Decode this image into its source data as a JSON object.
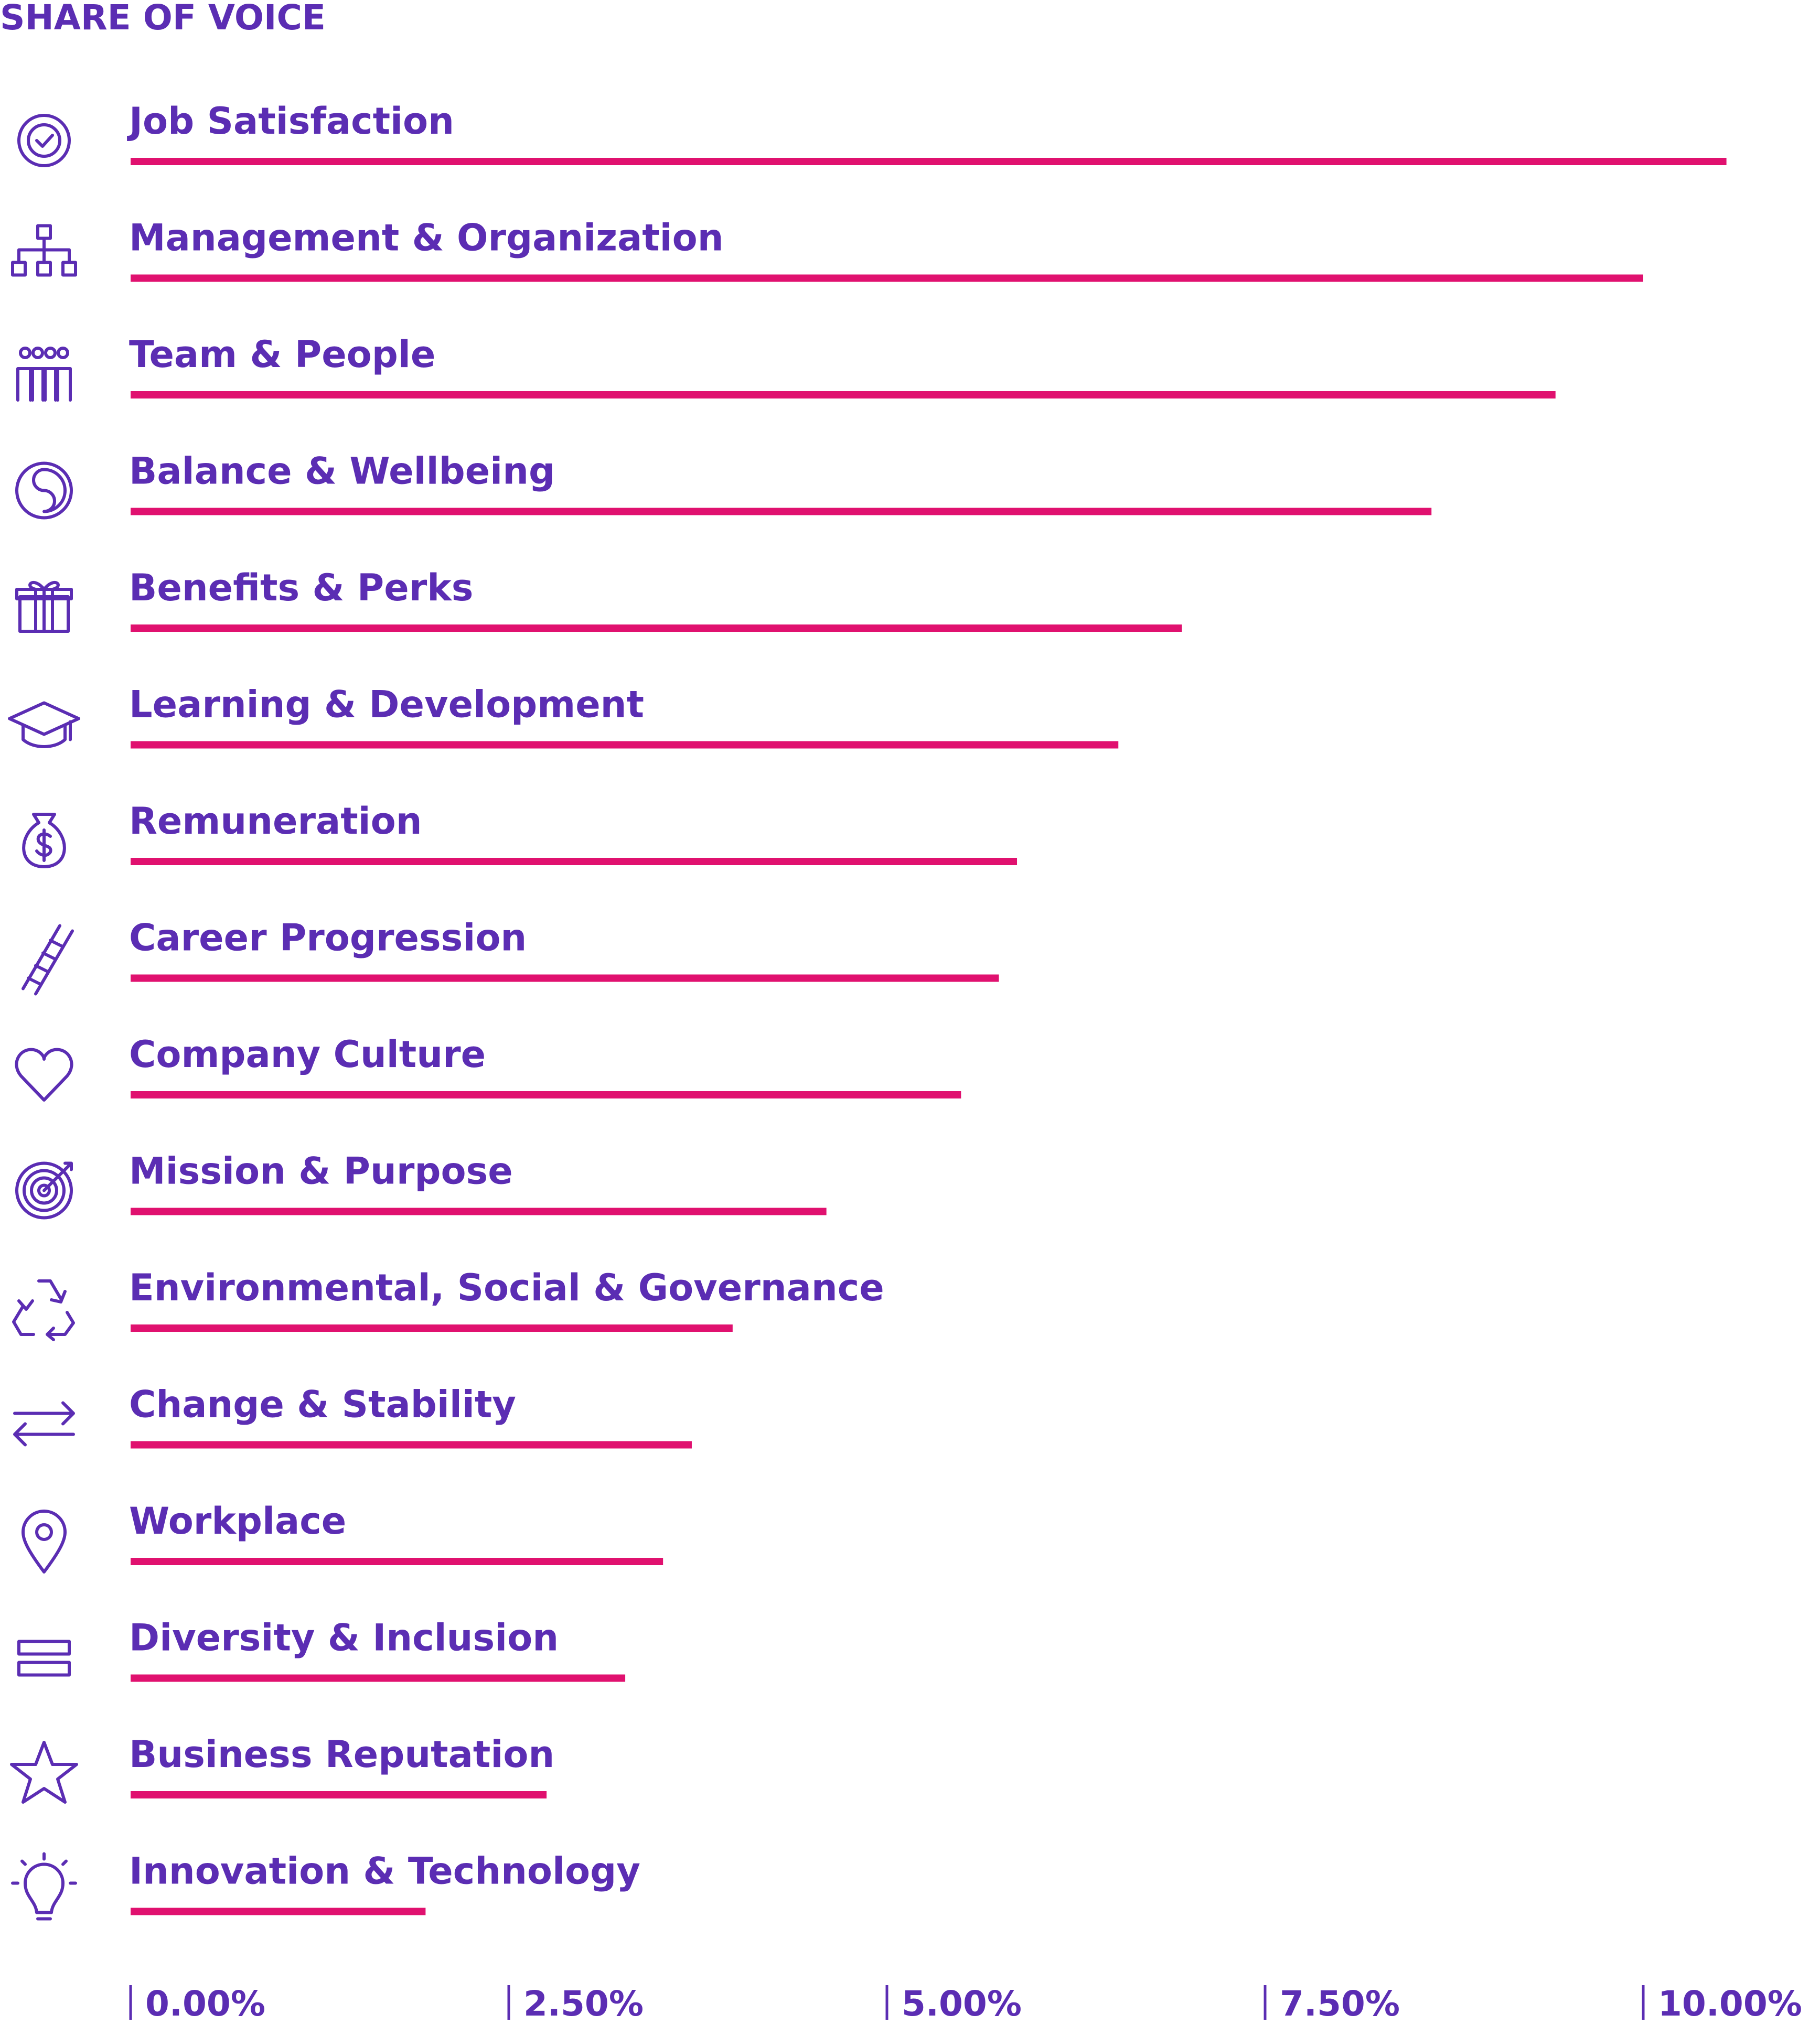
{
  "chart_data": {
    "type": "bar",
    "orientation": "horizontal",
    "title": "SHARE OF VOICE",
    "categories": [
      "Job Satisfaction",
      "Management & Organization",
      "Team & People",
      "Balance & Wellbeing",
      "Benefits & Perks",
      "Learning & Development",
      "Remuneration",
      "Career Progression",
      "Company Culture",
      "Mission & Purpose",
      "Environmental, Social & Governance",
      "Change & Stability",
      "Workplace",
      "Diversity & Inclusion",
      "Business Reputation",
      "Innovation & Technology"
    ],
    "values": [
      10.55,
      10.0,
      9.42,
      8.6,
      6.95,
      6.53,
      5.86,
      5.74,
      5.49,
      4.6,
      3.98,
      3.71,
      3.52,
      3.27,
      2.75,
      1.95
    ],
    "color": "#e0116f",
    "xlim": [
      0,
      11
    ],
    "xticks": [
      {
        "value": 0,
        "label": "0.00%"
      },
      {
        "value": 2.5,
        "label": "2.50%"
      },
      {
        "value": 5,
        "label": "5.00%"
      },
      {
        "value": 7.5,
        "label": "7.50%"
      },
      {
        "value": 10,
        "label": "10.00%"
      }
    ]
  }
}
